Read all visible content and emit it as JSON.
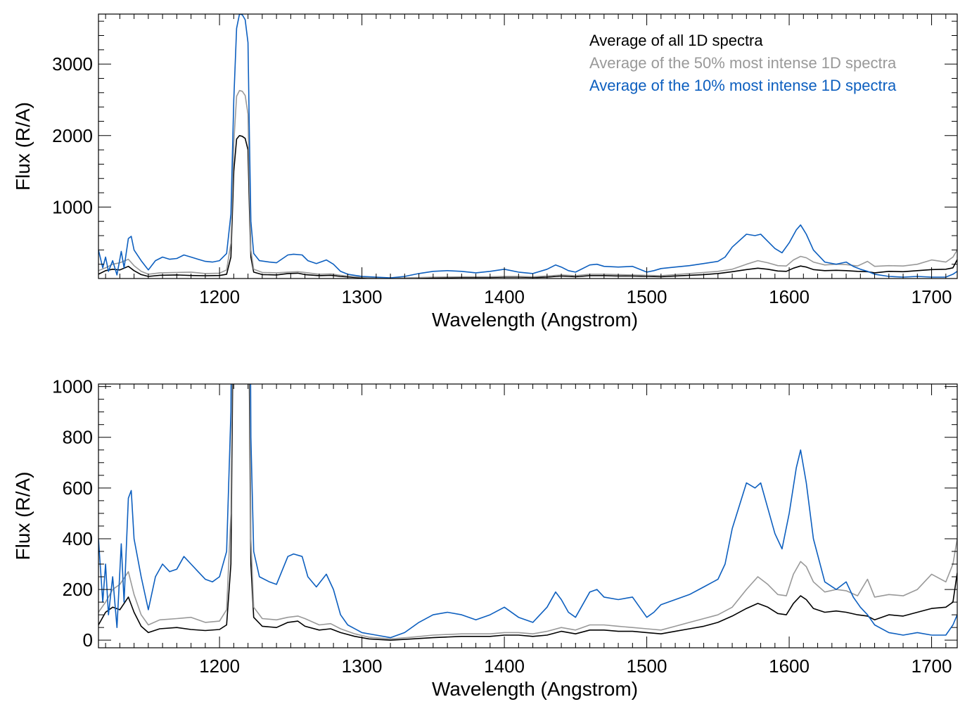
{
  "chart_data": [
    {
      "type": "line",
      "xlabel": "Wavelength (Angstrom)",
      "ylabel": "Flux (R/A)",
      "xlim": [
        1115,
        1718
      ],
      "ylim": [
        0,
        3700
      ],
      "xticks": [
        1200,
        1300,
        1400,
        1500,
        1600,
        1700
      ],
      "yticks": [
        1000,
        2000,
        3000
      ],
      "x_minor_step": 10,
      "y_minor_step": 200,
      "grid": false,
      "legend_placement": "top-right",
      "series": [
        {
          "name": "Average of all 1D spectra",
          "color": "#000000",
          "points": [
            [
              1115,
              60
            ],
            [
              1120,
              110
            ],
            [
              1125,
              130
            ],
            [
              1130,
              120
            ],
            [
              1136,
              170
            ],
            [
              1140,
              110
            ],
            [
              1145,
              55
            ],
            [
              1150,
              30
            ],
            [
              1158,
              45
            ],
            [
              1170,
              50
            ],
            [
              1180,
              42
            ],
            [
              1190,
              38
            ],
            [
              1200,
              42
            ],
            [
              1205,
              60
            ],
            [
              1208,
              300
            ],
            [
              1210,
              1500
            ],
            [
              1212,
              1950
            ],
            [
              1214,
              2000
            ],
            [
              1216,
              1990
            ],
            [
              1218,
              1960
            ],
            [
              1220,
              1800
            ],
            [
              1221,
              1000
            ],
            [
              1222,
              300
            ],
            [
              1224,
              90
            ],
            [
              1230,
              55
            ],
            [
              1240,
              50
            ],
            [
              1248,
              70
            ],
            [
              1255,
              75
            ],
            [
              1260,
              55
            ],
            [
              1270,
              40
            ],
            [
              1278,
              45
            ],
            [
              1285,
              30
            ],
            [
              1295,
              15
            ],
            [
              1305,
              5
            ],
            [
              1320,
              0
            ],
            [
              1335,
              5
            ],
            [
              1350,
              10
            ],
            [
              1370,
              15
            ],
            [
              1390,
              15
            ],
            [
              1400,
              20
            ],
            [
              1410,
              20
            ],
            [
              1420,
              15
            ],
            [
              1430,
              20
            ],
            [
              1440,
              35
            ],
            [
              1450,
              25
            ],
            [
              1460,
              40
            ],
            [
              1470,
              40
            ],
            [
              1480,
              35
            ],
            [
              1490,
              35
            ],
            [
              1500,
              30
            ],
            [
              1510,
              25
            ],
            [
              1520,
              35
            ],
            [
              1530,
              45
            ],
            [
              1540,
              55
            ],
            [
              1550,
              70
            ],
            [
              1560,
              95
            ],
            [
              1570,
              125
            ],
            [
              1578,
              145
            ],
            [
              1585,
              130
            ],
            [
              1592,
              105
            ],
            [
              1598,
              100
            ],
            [
              1603,
              145
            ],
            [
              1608,
              175
            ],
            [
              1612,
              160
            ],
            [
              1617,
              125
            ],
            [
              1625,
              110
            ],
            [
              1633,
              115
            ],
            [
              1640,
              110
            ],
            [
              1648,
              100
            ],
            [
              1655,
              95
            ],
            [
              1660,
              80
            ],
            [
              1670,
              100
            ],
            [
              1680,
              95
            ],
            [
              1690,
              110
            ],
            [
              1700,
              125
            ],
            [
              1710,
              130
            ],
            [
              1715,
              150
            ],
            [
              1718,
              265
            ]
          ]
        },
        {
          "name": "Average of the 50% most intense 1D spectra",
          "color": "#999999",
          "points": [
            [
              1115,
              110
            ],
            [
              1120,
              150
            ],
            [
              1125,
              200
            ],
            [
              1130,
              220
            ],
            [
              1136,
              270
            ],
            [
              1140,
              180
            ],
            [
              1145,
              100
            ],
            [
              1150,
              60
            ],
            [
              1158,
              80
            ],
            [
              1170,
              85
            ],
            [
              1180,
              90
            ],
            [
              1190,
              70
            ],
            [
              1200,
              75
            ],
            [
              1205,
              120
            ],
            [
              1208,
              500
            ],
            [
              1210,
              1900
            ],
            [
              1212,
              2550
            ],
            [
              1214,
              2630
            ],
            [
              1216,
              2620
            ],
            [
              1218,
              2560
            ],
            [
              1220,
              2300
            ],
            [
              1221,
              1300
            ],
            [
              1222,
              400
            ],
            [
              1224,
              130
            ],
            [
              1230,
              85
            ],
            [
              1240,
              80
            ],
            [
              1248,
              90
            ],
            [
              1255,
              95
            ],
            [
              1260,
              85
            ],
            [
              1270,
              60
            ],
            [
              1278,
              65
            ],
            [
              1285,
              45
            ],
            [
              1295,
              25
            ],
            [
              1305,
              12
            ],
            [
              1320,
              5
            ],
            [
              1335,
              12
            ],
            [
              1350,
              20
            ],
            [
              1370,
              25
            ],
            [
              1390,
              25
            ],
            [
              1400,
              30
            ],
            [
              1410,
              30
            ],
            [
              1420,
              25
            ],
            [
              1430,
              35
            ],
            [
              1440,
              50
            ],
            [
              1450,
              40
            ],
            [
              1460,
              60
            ],
            [
              1470,
              60
            ],
            [
              1480,
              55
            ],
            [
              1490,
              50
            ],
            [
              1500,
              45
            ],
            [
              1510,
              40
            ],
            [
              1520,
              55
            ],
            [
              1530,
              70
            ],
            [
              1540,
              85
            ],
            [
              1550,
              100
            ],
            [
              1560,
              130
            ],
            [
              1570,
              200
            ],
            [
              1578,
              250
            ],
            [
              1585,
              220
            ],
            [
              1592,
              180
            ],
            [
              1598,
              175
            ],
            [
              1603,
              260
            ],
            [
              1608,
              310
            ],
            [
              1612,
              290
            ],
            [
              1617,
              230
            ],
            [
              1625,
              190
            ],
            [
              1633,
              200
            ],
            [
              1640,
              195
            ],
            [
              1648,
              175
            ],
            [
              1655,
              240
            ],
            [
              1660,
              170
            ],
            [
              1670,
              180
            ],
            [
              1680,
              175
            ],
            [
              1690,
              200
            ],
            [
              1700,
              260
            ],
            [
              1710,
              230
            ],
            [
              1715,
              300
            ],
            [
              1718,
              400
            ]
          ]
        },
        {
          "name": "Average of the 10% most intense 1D spectra",
          "color": "#0d5fbf",
          "points": [
            [
              1115,
              400
            ],
            [
              1118,
              150
            ],
            [
              1120,
              300
            ],
            [
              1122,
              100
            ],
            [
              1125,
              250
            ],
            [
              1128,
              50
            ],
            [
              1131,
              380
            ],
            [
              1133,
              150
            ],
            [
              1136,
              560
            ],
            [
              1138,
              590
            ],
            [
              1140,
              400
            ],
            [
              1145,
              250
            ],
            [
              1150,
              120
            ],
            [
              1155,
              250
            ],
            [
              1160,
              300
            ],
            [
              1165,
              270
            ],
            [
              1170,
              280
            ],
            [
              1175,
              330
            ],
            [
              1180,
              300
            ],
            [
              1185,
              270
            ],
            [
              1190,
              240
            ],
            [
              1195,
              230
            ],
            [
              1200,
              250
            ],
            [
              1205,
              350
            ],
            [
              1208,
              900
            ],
            [
              1210,
              2500
            ],
            [
              1212,
              3500
            ],
            [
              1214,
              3700
            ],
            [
              1216,
              3690
            ],
            [
              1218,
              3620
            ],
            [
              1220,
              3300
            ],
            [
              1221,
              2000
            ],
            [
              1222,
              800
            ],
            [
              1224,
              350
            ],
            [
              1228,
              250
            ],
            [
              1235,
              230
            ],
            [
              1240,
              220
            ],
            [
              1248,
              330
            ],
            [
              1252,
              340
            ],
            [
              1258,
              330
            ],
            [
              1262,
              250
            ],
            [
              1268,
              210
            ],
            [
              1275,
              260
            ],
            [
              1280,
              200
            ],
            [
              1285,
              100
            ],
            [
              1290,
              60
            ],
            [
              1300,
              30
            ],
            [
              1310,
              20
            ],
            [
              1320,
              10
            ],
            [
              1330,
              30
            ],
            [
              1340,
              70
            ],
            [
              1350,
              100
            ],
            [
              1360,
              110
            ],
            [
              1370,
              100
            ],
            [
              1380,
              80
            ],
            [
              1390,
              100
            ],
            [
              1400,
              130
            ],
            [
              1410,
              90
            ],
            [
              1420,
              70
            ],
            [
              1430,
              130
            ],
            [
              1436,
              190
            ],
            [
              1440,
              160
            ],
            [
              1445,
              110
            ],
            [
              1450,
              90
            ],
            [
              1460,
              190
            ],
            [
              1465,
              200
            ],
            [
              1470,
              170
            ],
            [
              1480,
              160
            ],
            [
              1490,
              170
            ],
            [
              1500,
              90
            ],
            [
              1505,
              110
            ],
            [
              1510,
              140
            ],
            [
              1520,
              160
            ],
            [
              1530,
              180
            ],
            [
              1540,
              210
            ],
            [
              1550,
              240
            ],
            [
              1555,
              300
            ],
            [
              1560,
              440
            ],
            [
              1570,
              620
            ],
            [
              1576,
              600
            ],
            [
              1580,
              620
            ],
            [
              1585,
              520
            ],
            [
              1590,
              420
            ],
            [
              1595,
              360
            ],
            [
              1600,
              500
            ],
            [
              1605,
              680
            ],
            [
              1608,
              750
            ],
            [
              1612,
              620
            ],
            [
              1617,
              400
            ],
            [
              1625,
              230
            ],
            [
              1633,
              200
            ],
            [
              1640,
              230
            ],
            [
              1645,
              170
            ],
            [
              1650,
              130
            ],
            [
              1655,
              100
            ],
            [
              1660,
              60
            ],
            [
              1670,
              30
            ],
            [
              1680,
              20
            ],
            [
              1690,
              30
            ],
            [
              1700,
              20
            ],
            [
              1710,
              20
            ],
            [
              1715,
              60
            ],
            [
              1718,
              100
            ]
          ]
        }
      ]
    },
    {
      "type": "line",
      "xlabel": "Wavelength (Angstrom)",
      "ylabel": "Flux (R/A)",
      "xlim": [
        1115,
        1718
      ],
      "ylim": [
        -30,
        1010
      ],
      "xticks": [
        1200,
        1300,
        1400,
        1500,
        1600,
        1700
      ],
      "yticks": [
        0,
        200,
        400,
        600,
        800,
        1000
      ],
      "x_minor_step": 10,
      "y_minor_step": 50,
      "grid": false,
      "series_from": 0
    }
  ]
}
